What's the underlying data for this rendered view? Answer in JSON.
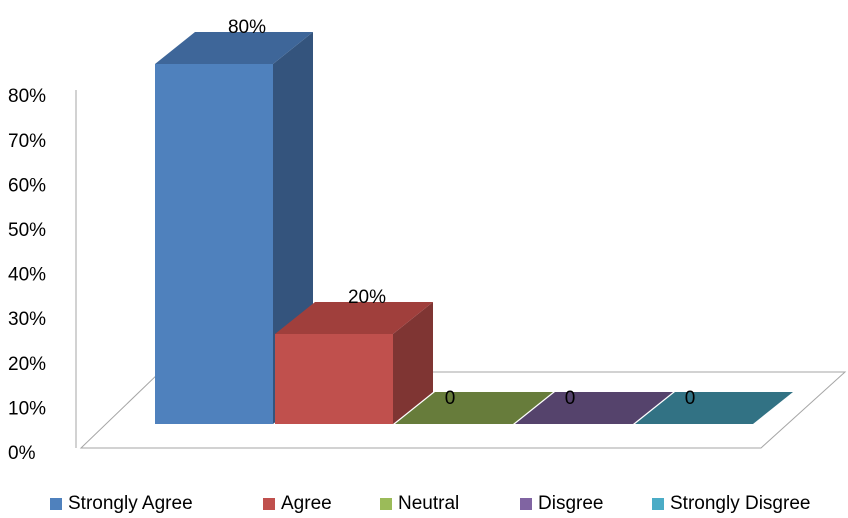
{
  "chart_data": {
    "type": "bar",
    "style": "3d-column",
    "categories": [
      "Strongly Agree",
      "Agree",
      "Neutral",
      "Disgree",
      "Strongly Disgree"
    ],
    "values": [
      80,
      20,
      0,
      0,
      0
    ],
    "data_labels": [
      "80%",
      "20%",
      "0",
      "0",
      "0"
    ],
    "colors": [
      "#4F81BD",
      "#C0504D",
      "#9BBB59",
      "#8064A2",
      "#4BACC6"
    ],
    "side_colors": [
      "#34547D",
      "#7F3533",
      "#677C3B",
      "#55436C",
      "#327284"
    ],
    "top_colors": [
      "#3E6699",
      "#A03F3C",
      "#7F9A48",
      "#6A5386",
      "#3E91A8"
    ],
    "y_ticks": [
      "0%",
      "10%",
      "20%",
      "30%",
      "40%",
      "50%",
      "60%",
      "70%",
      "80%"
    ],
    "ylim": [
      0,
      80
    ],
    "legend_position": "bottom",
    "grid": false
  }
}
